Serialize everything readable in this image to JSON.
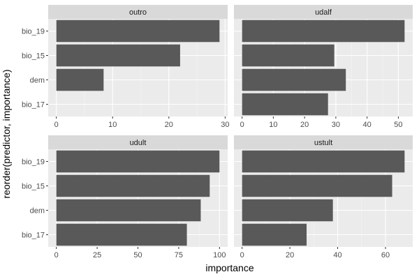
{
  "chart_data": {
    "type": "bar",
    "orientation": "horizontal",
    "xlabel": "importance",
    "ylabel": "reorder(predictor, importance)",
    "categories": [
      "bio_19",
      "bio_15",
      "dem",
      "bio_17"
    ],
    "grid": true,
    "colors": {
      "bar": "#595959",
      "panel_bg": "#ebebeb",
      "strip_bg": "#d9d9d9",
      "grid_major": "#ffffff",
      "grid_minor": "#f5f5f5"
    },
    "panels": [
      {
        "name": "outro",
        "xlim": [
          -1.45,
          30.45
        ],
        "ticks": [
          0,
          10,
          20,
          30
        ],
        "values": {
          "bio_19": 29.0,
          "bio_15": 22.0,
          "dem": 8.4,
          "bio_17": 0
        }
      },
      {
        "name": "udalf",
        "xlim": [
          -2.6,
          54.6
        ],
        "ticks": [
          0,
          10,
          20,
          30,
          40,
          50
        ],
        "values": {
          "bio_19": 52.0,
          "bio_15": 29.5,
          "dem": 33.2,
          "bio_17": 27.5
        }
      },
      {
        "name": "udult",
        "xlim": [
          -5,
          105
        ],
        "ticks": [
          0,
          25,
          50,
          75,
          100
        ],
        "values": {
          "bio_19": 100,
          "bio_15": 94,
          "dem": 88.5,
          "bio_17": 80
        }
      },
      {
        "name": "ustult",
        "xlim": [
          -3.4,
          71.4
        ],
        "ticks": [
          0,
          20,
          40,
          60
        ],
        "values": {
          "bio_19": 68.0,
          "bio_15": 62.8,
          "dem": 38.0,
          "bio_17": 27.0
        }
      }
    ]
  }
}
